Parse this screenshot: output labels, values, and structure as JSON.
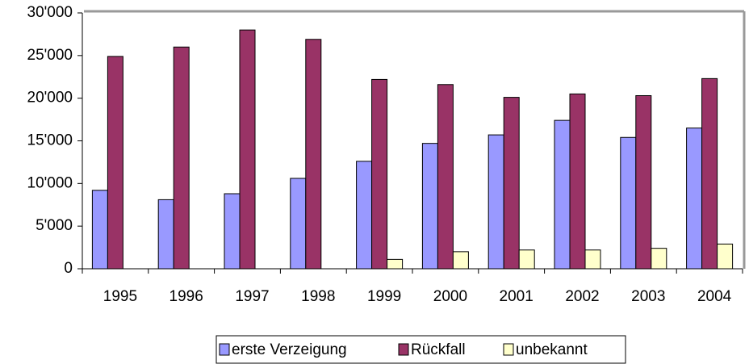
{
  "chart_data": {
    "type": "bar",
    "categories": [
      "1995",
      "1996",
      "1997",
      "1998",
      "1999",
      "2000",
      "2001",
      "2002",
      "2003",
      "2004"
    ],
    "series": [
      {
        "name": "erste Verzeigung",
        "color": "#9999ff",
        "values": [
          9200,
          8100,
          8800,
          10600,
          12600,
          14700,
          15700,
          17400,
          15400,
          16500
        ]
      },
      {
        "name": "Rückfall",
        "color": "#993366",
        "values": [
          24900,
          26000,
          28000,
          26900,
          22200,
          21600,
          20100,
          20500,
          20300,
          22300
        ]
      },
      {
        "name": "unbekannt",
        "color": "#ffffcc",
        "values": [
          0,
          0,
          0,
          0,
          1100,
          2000,
          2200,
          2200,
          2400,
          2900
        ]
      }
    ],
    "ylim": [
      0,
      30000
    ],
    "yticks": [
      0,
      {
        "value": 5000,
        "label": "5'000"
      },
      {
        "value": 10000,
        "label": "10'000"
      },
      {
        "value": 15000,
        "label": "15'000"
      },
      {
        "value": 20000,
        "label": "20'000"
      },
      {
        "value": 25000,
        "label": "25'000"
      },
      {
        "value": 30000,
        "label": "30'000"
      }
    ],
    "grid": false,
    "legend": "bottom"
  }
}
